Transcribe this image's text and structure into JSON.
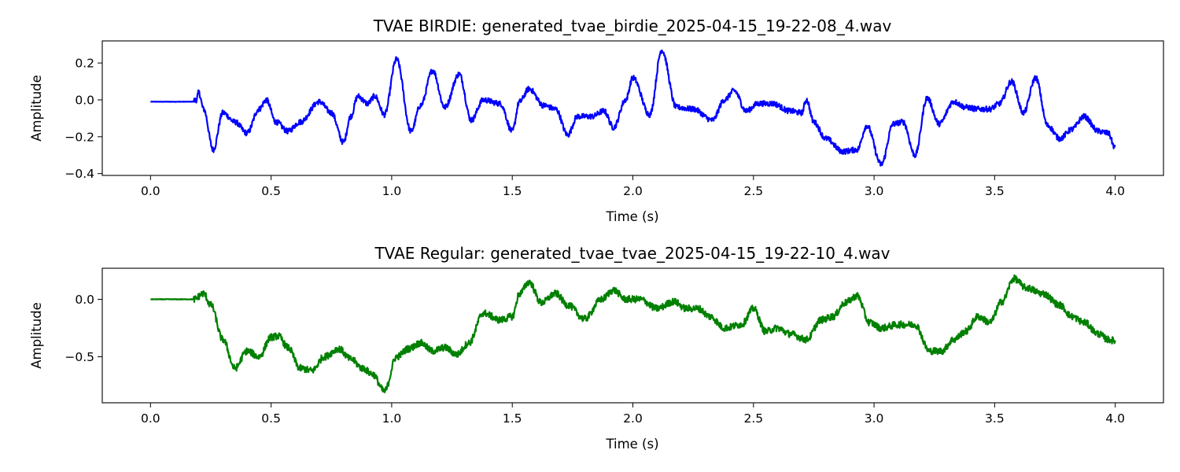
{
  "chart_data": [
    {
      "type": "line",
      "title": "TVAE BIRDIE: generated_tvae_birdie_2025-04-15_19-22-08_4.wav",
      "xlabel": "Time (s)",
      "ylabel": "Amplitude",
      "xlim": [
        -0.2,
        4.2
      ],
      "ylim": [
        -0.41,
        0.32
      ],
      "xticks": [
        0.0,
        0.5,
        1.0,
        1.5,
        2.0,
        2.5,
        3.0,
        3.5,
        4.0
      ],
      "xtick_labels": [
        "0.0",
        "0.5",
        "1.0",
        "1.5",
        "2.0",
        "2.5",
        "3.0",
        "3.5",
        "4.0"
      ],
      "yticks": [
        0.2,
        0.0,
        -0.2,
        -0.4
      ],
      "ytick_labels": [
        "0.2",
        "0.0",
        "−0.2",
        "−0.4"
      ],
      "grid": false,
      "color": "#0000ff",
      "noise_amplitude": 0.015,
      "series": [
        {
          "x": [
            0.0,
            0.17,
            0.19,
            0.2,
            0.22,
            0.26,
            0.3,
            0.35,
            0.4,
            0.45,
            0.48,
            0.52,
            0.57,
            0.62,
            0.7,
            0.75,
            0.8,
            0.83,
            0.86,
            0.9,
            0.93,
            0.97,
            1.02,
            1.08,
            1.12,
            1.17,
            1.22,
            1.28,
            1.33,
            1.38,
            1.45,
            1.5,
            1.53,
            1.57,
            1.63,
            1.68,
            1.73,
            1.77,
            1.83,
            1.88,
            1.92,
            1.97,
            2.0,
            2.07,
            2.12,
            2.18,
            2.25,
            2.33,
            2.38,
            2.42,
            2.47,
            2.52,
            2.58,
            2.65,
            2.7,
            2.72,
            2.75,
            2.8,
            2.87,
            2.93,
            2.97,
            3.03,
            3.08,
            3.12,
            3.17,
            3.22,
            3.27,
            3.33,
            3.38,
            3.43,
            3.48,
            3.52,
            3.57,
            3.62,
            3.67,
            3.72,
            3.77,
            3.82,
            3.87,
            3.93,
            3.97,
            4.0
          ],
          "y": [
            -0.01,
            -0.01,
            0.0,
            0.04,
            -0.05,
            -0.27,
            -0.07,
            -0.12,
            -0.18,
            -0.05,
            0.0,
            -0.12,
            -0.17,
            -0.12,
            -0.01,
            -0.07,
            -0.23,
            -0.09,
            0.02,
            -0.02,
            0.02,
            -0.08,
            0.22,
            -0.17,
            -0.03,
            0.16,
            -0.04,
            0.14,
            -0.11,
            0.0,
            -0.02,
            -0.17,
            -0.01,
            0.06,
            -0.03,
            -0.05,
            -0.19,
            -0.09,
            -0.09,
            -0.06,
            -0.15,
            0.0,
            0.12,
            -0.08,
            0.27,
            -0.04,
            -0.05,
            -0.11,
            0.0,
            0.05,
            -0.06,
            -0.02,
            -0.02,
            -0.06,
            -0.07,
            0.0,
            -0.12,
            -0.21,
            -0.28,
            -0.27,
            -0.14,
            -0.35,
            -0.13,
            -0.12,
            -0.3,
            0.01,
            -0.13,
            -0.01,
            -0.04,
            -0.05,
            -0.05,
            -0.02,
            0.1,
            -0.07,
            0.12,
            -0.14,
            -0.21,
            -0.16,
            -0.09,
            -0.17,
            -0.18,
            -0.26
          ]
        }
      ]
    },
    {
      "type": "line",
      "title": "TVAE Regular: generated_tvae_tvae_2025-04-15_19-22-10_4.wav",
      "xlabel": "Time (s)",
      "ylabel": "Amplitude",
      "xlim": [
        -0.2,
        4.2
      ],
      "ylim": [
        -0.9,
        0.27
      ],
      "xticks": [
        0.0,
        0.5,
        1.0,
        1.5,
        2.0,
        2.5,
        3.0,
        3.5,
        4.0
      ],
      "xtick_labels": [
        "0.0",
        "0.5",
        "1.0",
        "1.5",
        "2.0",
        "2.5",
        "3.0",
        "3.5",
        "4.0"
      ],
      "yticks": [
        0.0,
        -0.5
      ],
      "ytick_labels": [
        "0.0",
        "−0.5"
      ],
      "grid": false,
      "color": "#008000",
      "noise_amplitude": 0.03,
      "series": [
        {
          "x": [
            0.0,
            0.18,
            0.22,
            0.25,
            0.3,
            0.35,
            0.4,
            0.45,
            0.5,
            0.53,
            0.57,
            0.62,
            0.67,
            0.72,
            0.78,
            0.83,
            0.88,
            0.92,
            0.97,
            1.02,
            1.07,
            1.12,
            1.17,
            1.22,
            1.27,
            1.32,
            1.38,
            1.45,
            1.5,
            1.53,
            1.57,
            1.62,
            1.68,
            1.73,
            1.8,
            1.87,
            1.92,
            1.97,
            2.03,
            2.1,
            2.17,
            2.22,
            2.27,
            2.32,
            2.38,
            2.45,
            2.5,
            2.55,
            2.6,
            2.65,
            2.72,
            2.78,
            2.83,
            2.88,
            2.93,
            2.98,
            3.03,
            3.1,
            3.17,
            3.23,
            3.28,
            3.33,
            3.38,
            3.43,
            3.48,
            3.53,
            3.58,
            3.63,
            3.7,
            3.77,
            3.82,
            3.87,
            3.93,
            3.97,
            4.0
          ],
          "y": [
            0.0,
            0.0,
            0.05,
            -0.05,
            -0.35,
            -0.6,
            -0.45,
            -0.5,
            -0.33,
            -0.32,
            -0.42,
            -0.6,
            -0.62,
            -0.5,
            -0.43,
            -0.52,
            -0.6,
            -0.65,
            -0.8,
            -0.5,
            -0.43,
            -0.38,
            -0.45,
            -0.42,
            -0.48,
            -0.38,
            -0.12,
            -0.18,
            -0.15,
            0.05,
            0.15,
            -0.03,
            0.05,
            -0.05,
            -0.17,
            0.0,
            0.08,
            0.0,
            0.0,
            -0.08,
            -0.02,
            -0.08,
            -0.08,
            -0.15,
            -0.25,
            -0.22,
            -0.08,
            -0.28,
            -0.25,
            -0.3,
            -0.35,
            -0.18,
            -0.15,
            -0.03,
            0.03,
            -0.2,
            -0.25,
            -0.22,
            -0.22,
            -0.45,
            -0.45,
            -0.35,
            -0.28,
            -0.15,
            -0.2,
            -0.02,
            0.18,
            0.1,
            0.05,
            -0.05,
            -0.15,
            -0.2,
            -0.3,
            -0.35,
            -0.36
          ]
        }
      ]
    }
  ]
}
